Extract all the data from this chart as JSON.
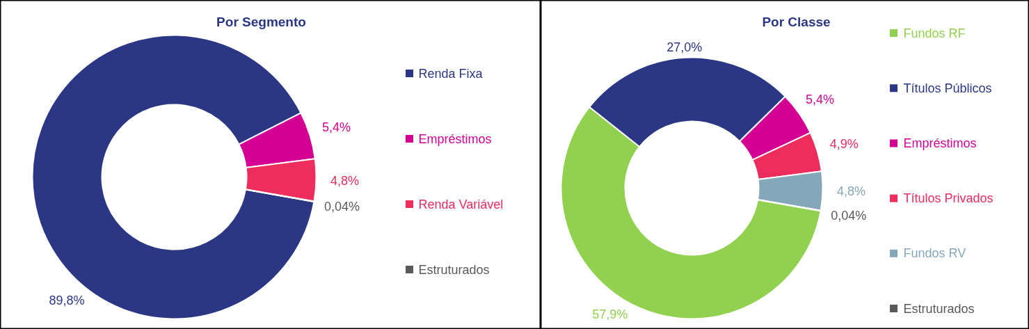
{
  "chart_data": [
    {
      "type": "donut",
      "title": "Por Segmento",
      "categories": [
        "Renda Fixa",
        "Empréstimos",
        "Renda Variável",
        "Estruturados"
      ],
      "values": [
        89.8,
        5.4,
        4.8,
        0.04
      ],
      "colors": [
        "#2b3784",
        "#d40093",
        "#ee2d5f",
        "#595959"
      ],
      "value_labels": [
        "89,8%",
        "5,4%",
        "4,8%",
        "0,04%"
      ],
      "legend": "right"
    },
    {
      "type": "donut",
      "title": "Por Classe",
      "categories": [
        "Fundos RF",
        "Títulos Públicos",
        "Empréstimos",
        "Títulos Privados",
        "Fundos RV",
        "Estruturados"
      ],
      "values": [
        57.9,
        27.0,
        5.4,
        4.9,
        4.8,
        0.04
      ],
      "colors": [
        "#92d050",
        "#2b3784",
        "#d40093",
        "#ee2d5f",
        "#84a7b9",
        "#595959"
      ],
      "value_labels": [
        "57,9%",
        "27,0%",
        "5,4%",
        "4,9%",
        "4,8%",
        "0,04%"
      ],
      "legend": "right"
    }
  ]
}
